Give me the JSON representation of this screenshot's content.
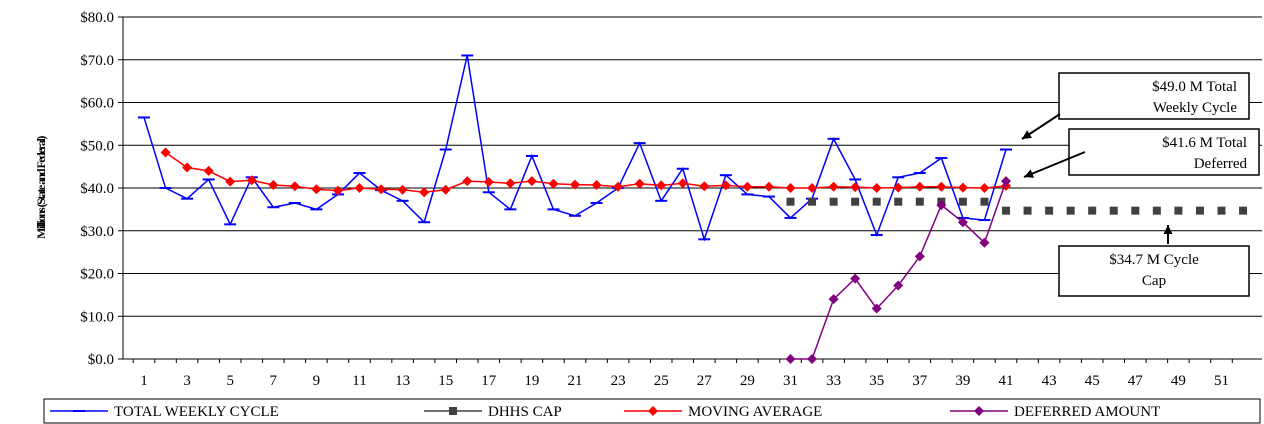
{
  "chart_data": {
    "type": "line",
    "ylabel": "Millions (State and Federal)",
    "ylim": [
      0,
      80
    ],
    "y_ticks": [
      "$0.0",
      "$10.0",
      "$20.0",
      "$30.0",
      "$40.0",
      "$50.0",
      "$60.0",
      "$70.0",
      "$80.0"
    ],
    "x_ticks": [
      1,
      3,
      5,
      7,
      9,
      11,
      13,
      15,
      17,
      19,
      21,
      23,
      25,
      27,
      29,
      31,
      33,
      35,
      37,
      39,
      41,
      43,
      45,
      47,
      49,
      51
    ],
    "xlim": [
      1,
      52
    ],
    "grid": true,
    "legend_position": "bottom",
    "series": [
      {
        "name": "TOTAL WEEKLY  CYCLE",
        "color": "#0000ff",
        "marker": "dash",
        "x": [
          1,
          2,
          3,
          4,
          5,
          6,
          7,
          8,
          9,
          10,
          11,
          12,
          13,
          14,
          15,
          16,
          17,
          18,
          19,
          20,
          21,
          22,
          23,
          24,
          25,
          26,
          27,
          28,
          29,
          30,
          31,
          32,
          33,
          34,
          35,
          36,
          37,
          38,
          39,
          40,
          41
        ],
        "values": [
          56.5,
          40.0,
          37.5,
          42.0,
          31.5,
          42.5,
          35.5,
          36.5,
          35.0,
          38.5,
          43.5,
          39.5,
          37.0,
          32.0,
          49.0,
          71.0,
          39.0,
          35.0,
          47.5,
          35.0,
          33.5,
          36.5,
          40.0,
          50.5,
          37.0,
          44.5,
          28.0,
          43.0,
          38.5,
          38.0,
          33.0,
          37.5,
          51.5,
          42.0,
          29.0,
          42.5,
          43.5,
          47.0,
          33.0,
          32.5,
          49.0
        ]
      },
      {
        "name": "DHHS CAP",
        "color": "#404040",
        "marker": "square",
        "x": [
          31,
          32,
          33,
          34,
          35,
          36,
          37,
          38,
          39,
          40,
          41,
          42,
          43,
          44,
          45,
          46,
          47,
          48,
          49,
          50,
          51,
          52
        ],
        "values": [
          36.8,
          36.8,
          36.8,
          36.8,
          36.8,
          36.8,
          36.8,
          36.8,
          36.8,
          36.8,
          34.7,
          34.7,
          34.7,
          34.7,
          34.7,
          34.7,
          34.7,
          34.7,
          34.7,
          34.7,
          34.7,
          34.7
        ]
      },
      {
        "name": "MOVING AVERAGE",
        "color": "#ff0000",
        "marker": "diamond",
        "x": [
          2,
          3,
          4,
          5,
          6,
          7,
          8,
          9,
          10,
          11,
          12,
          13,
          14,
          15,
          16,
          17,
          18,
          19,
          20,
          21,
          22,
          23,
          24,
          25,
          26,
          27,
          28,
          29,
          30,
          31,
          32,
          33,
          34,
          35,
          36,
          37,
          38,
          39,
          40,
          41
        ],
        "values": [
          48.3,
          44.8,
          44.0,
          41.5,
          41.8,
          40.7,
          40.4,
          39.7,
          39.4,
          40.0,
          39.7,
          39.6,
          39.0,
          39.6,
          41.6,
          41.4,
          41.1,
          41.6,
          41.0,
          40.8,
          40.7,
          40.3,
          41.0,
          40.6,
          41.1,
          40.4,
          40.6,
          40.3,
          40.3,
          40.0,
          40.0,
          40.3,
          40.2,
          40.0,
          40.1,
          40.3,
          40.3,
          40.1,
          40.0,
          40.5
        ]
      },
      {
        "name": "DEFERRED AMOUNT",
        "color": "#800080",
        "marker": "diamond",
        "x": [
          31,
          32,
          33,
          34,
          35,
          36,
          37,
          38,
          39,
          40,
          41
        ],
        "values": [
          0.0,
          0.0,
          14.0,
          18.8,
          11.8,
          17.2,
          24.0,
          36.0,
          32.0,
          27.2,
          41.6
        ]
      }
    ],
    "annotations": [
      {
        "lines": [
          "$49.0 M  Total",
          "Weekly Cycle"
        ]
      },
      {
        "lines": [
          "$41.6 M Total",
          "Deferred"
        ]
      },
      {
        "lines": [
          "$34.7 M Cycle",
          "Cap"
        ]
      }
    ]
  }
}
